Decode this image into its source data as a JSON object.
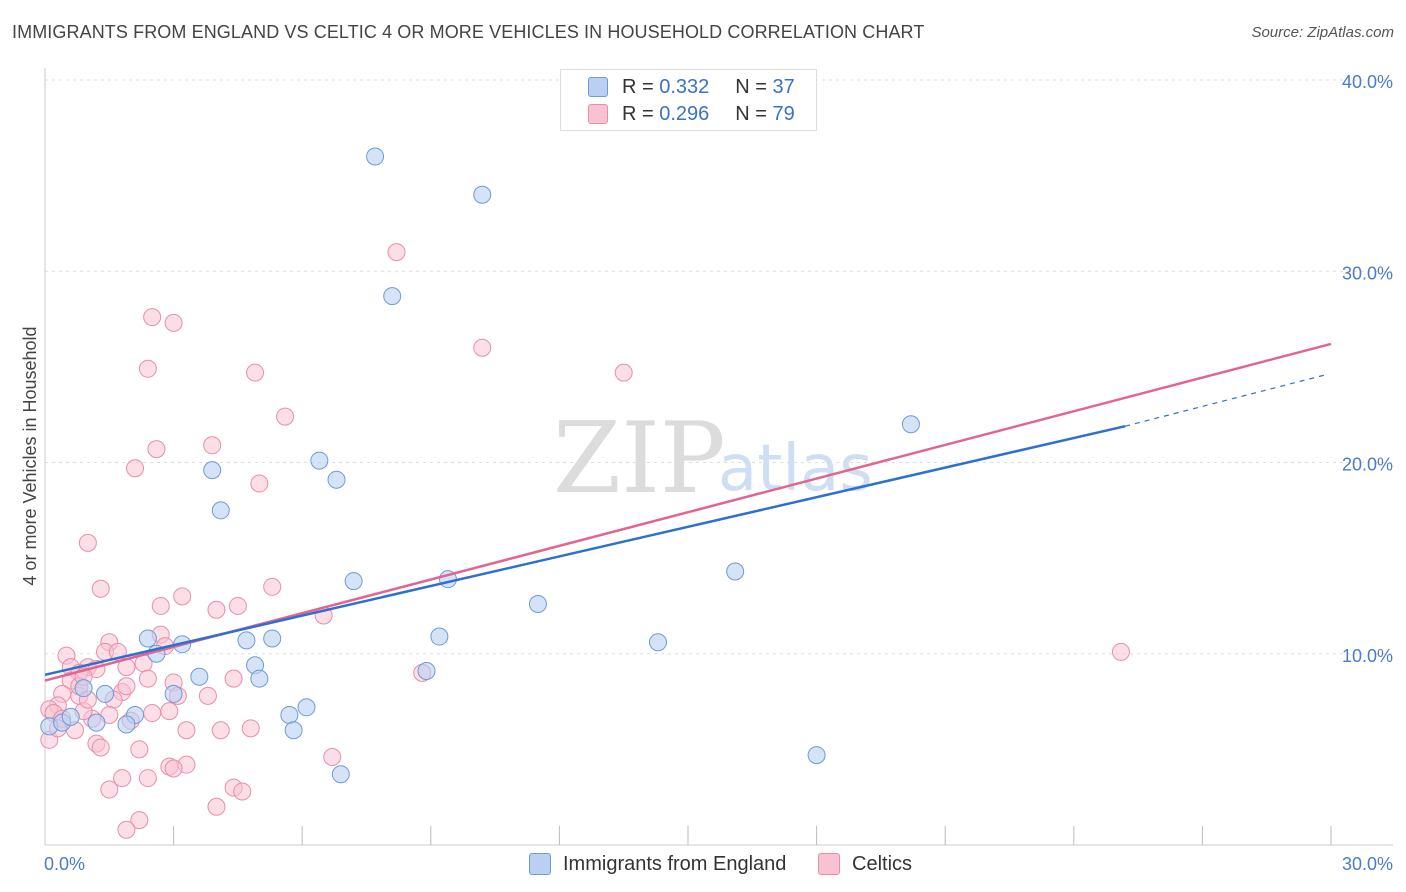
{
  "title": "IMMIGRANTS FROM ENGLAND VS CELTIC 4 OR MORE VEHICLES IN HOUSEHOLD CORRELATION CHART",
  "source": "Source: ZipAtlas.com",
  "watermark": {
    "zip": "ZIP",
    "atlas": "atlas"
  },
  "legend": {
    "rows": [
      {
        "r_label": "R = ",
        "r_value": "0.332",
        "n_label": "N = ",
        "n_value": "37"
      },
      {
        "r_label": "R = ",
        "r_value": "0.296",
        "n_label": "N = ",
        "n_value": "79"
      }
    ]
  },
  "bottom_legend": {
    "england": "Immigrants from England",
    "celtics": "Celtics"
  },
  "colors": {
    "england_fill": "#b9d0f2",
    "england_stroke": "#6f9ad8",
    "england_line": "#2f6fcf",
    "celtic_fill": "#f8c2d2",
    "celtic_stroke": "#e78fab",
    "celtic_line": "#e2658f",
    "grid": "#dddddd",
    "tick": "#4a7cc9"
  },
  "chart_data": {
    "type": "scatter",
    "title": "IMMIGRANTS FROM ENGLAND VS CELTIC 4 OR MORE VEHICLES IN HOUSEHOLD CORRELATION CHART",
    "xlabel": "",
    "ylabel": "4 or more Vehicles in Household",
    "xlim": [
      0,
      30
    ],
    "ylim": [
      0,
      40
    ],
    "x_tick_labels": [
      "0.0%",
      "30.0%"
    ],
    "y_ticks": [
      10,
      20,
      30,
      40
    ],
    "y_tick_labels": [
      "10.0%",
      "20.0%",
      "30.0%",
      "40.0%"
    ],
    "grid": true,
    "series": [
      {
        "name": "Immigrants from England",
        "r": 0.332,
        "n": 37,
        "trend": {
          "x0": 0,
          "y0": 8.9,
          "x1": 25.2,
          "y1": 21.9,
          "dash_x1": 29.9,
          "dash_y1": 24.6
        },
        "points": [
          [
            7.7,
            36.0
          ],
          [
            10.2,
            34.0
          ],
          [
            8.1,
            28.7
          ],
          [
            20.2,
            22.0
          ],
          [
            6.4,
            20.1
          ],
          [
            3.9,
            19.6
          ],
          [
            6.8,
            19.1
          ],
          [
            4.1,
            17.5
          ],
          [
            16.1,
            14.3
          ],
          [
            7.2,
            13.8
          ],
          [
            9.4,
            13.9
          ],
          [
            11.5,
            12.6
          ],
          [
            2.4,
            10.8
          ],
          [
            3.2,
            10.5
          ],
          [
            2.6,
            10.0
          ],
          [
            4.7,
            10.7
          ],
          [
            5.3,
            10.8
          ],
          [
            9.2,
            10.9
          ],
          [
            14.3,
            10.6
          ],
          [
            8.9,
            9.1
          ],
          [
            3.6,
            8.8
          ],
          [
            4.9,
            9.4
          ],
          [
            5.0,
            8.7
          ],
          [
            0.9,
            8.2
          ],
          [
            1.4,
            7.9
          ],
          [
            3.0,
            7.9
          ],
          [
            6.1,
            7.2
          ],
          [
            5.7,
            6.8
          ],
          [
            2.1,
            6.8
          ],
          [
            0.1,
            6.2
          ],
          [
            0.4,
            6.4
          ],
          [
            0.6,
            6.7
          ],
          [
            1.2,
            6.4
          ],
          [
            1.9,
            6.3
          ],
          [
            5.8,
            6.0
          ],
          [
            6.9,
            3.7
          ],
          [
            18.0,
            4.7
          ]
        ]
      },
      {
        "name": "Celtics",
        "r": 0.296,
        "n": 79,
        "trend": {
          "x0": 0,
          "y0": 8.6,
          "x1": 30.0,
          "y1": 26.2
        },
        "points": [
          [
            8.2,
            31.0
          ],
          [
            2.5,
            27.6
          ],
          [
            3.0,
            27.3
          ],
          [
            10.2,
            26.0
          ],
          [
            2.4,
            24.9
          ],
          [
            4.9,
            24.7
          ],
          [
            13.5,
            24.7
          ],
          [
            5.6,
            22.4
          ],
          [
            3.9,
            20.9
          ],
          [
            2.6,
            20.7
          ],
          [
            2.1,
            19.7
          ],
          [
            5.0,
            18.9
          ],
          [
            1.0,
            15.8
          ],
          [
            1.3,
            13.4
          ],
          [
            5.3,
            13.5
          ],
          [
            3.2,
            13.0
          ],
          [
            2.7,
            12.5
          ],
          [
            4.0,
            12.3
          ],
          [
            4.5,
            12.5
          ],
          [
            6.5,
            12.0
          ],
          [
            2.7,
            11.0
          ],
          [
            1.5,
            10.6
          ],
          [
            1.4,
            10.1
          ],
          [
            2.8,
            10.4
          ],
          [
            0.5,
            9.9
          ],
          [
            0.6,
            9.3
          ],
          [
            1.0,
            9.3
          ],
          [
            1.2,
            9.2
          ],
          [
            0.8,
            9.0
          ],
          [
            2.3,
            9.5
          ],
          [
            0.6,
            8.6
          ],
          [
            1.8,
            8.0
          ],
          [
            1.9,
            8.3
          ],
          [
            2.4,
            8.7
          ],
          [
            3.0,
            8.5
          ],
          [
            0.4,
            7.9
          ],
          [
            0.8,
            7.8
          ],
          [
            1.6,
            7.6
          ],
          [
            3.1,
            7.8
          ],
          [
            1.1,
            6.6
          ],
          [
            0.3,
            7.3
          ],
          [
            0.1,
            7.1
          ],
          [
            0.2,
            6.9
          ],
          [
            0.4,
            6.6
          ],
          [
            0.9,
            7.0
          ],
          [
            2.0,
            6.5
          ],
          [
            2.5,
            6.9
          ],
          [
            0.1,
            5.5
          ],
          [
            3.3,
            6.0
          ],
          [
            4.1,
            6.0
          ],
          [
            4.8,
            6.1
          ],
          [
            1.2,
            5.3
          ],
          [
            1.3,
            5.1
          ],
          [
            2.2,
            5.0
          ],
          [
            6.7,
            4.6
          ],
          [
            8.8,
            9.0
          ],
          [
            2.9,
            4.1
          ],
          [
            3.3,
            4.2
          ],
          [
            3.0,
            4.0
          ],
          [
            1.8,
            3.5
          ],
          [
            2.4,
            3.5
          ],
          [
            1.5,
            2.9
          ],
          [
            4.4,
            3.0
          ],
          [
            4.6,
            2.8
          ],
          [
            4.0,
            2.0
          ],
          [
            2.2,
            1.3
          ],
          [
            1.9,
            0.8
          ],
          [
            25.1,
            10.1
          ],
          [
            0.8,
            8.3
          ],
          [
            1.7,
            10.1
          ],
          [
            0.9,
            8.8
          ],
          [
            0.3,
            6.1
          ],
          [
            1.5,
            6.8
          ],
          [
            2.9,
            7.0
          ],
          [
            4.4,
            8.7
          ],
          [
            3.8,
            7.8
          ],
          [
            1.0,
            7.6
          ],
          [
            0.7,
            6.0
          ],
          [
            1.9,
            9.3
          ]
        ]
      }
    ]
  }
}
